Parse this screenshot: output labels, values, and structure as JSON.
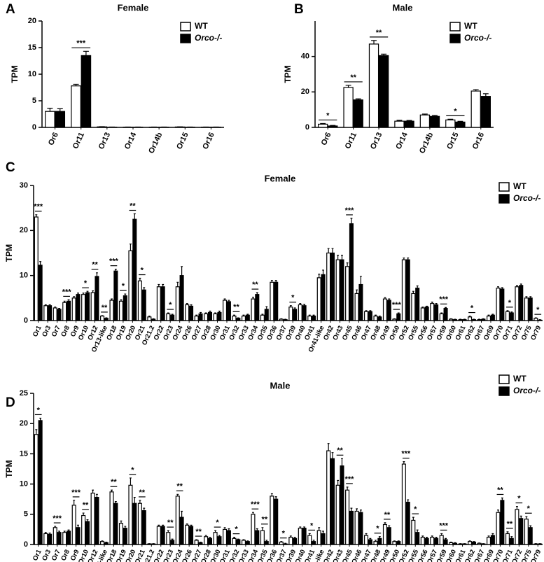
{
  "chart_data": [
    {
      "type": "bar",
      "panel": "A",
      "title": "Female",
      "ylabel": "TPM",
      "categories": [
        "Or6",
        "Or11",
        "Or13",
        "Or14",
        "Or14b",
        "Or15",
        "Or16"
      ],
      "series": [
        {
          "name": "WT",
          "color": "#ffffff",
          "values": [
            3.0,
            7.8,
            0.1,
            0.05,
            0.05,
            0.08,
            0.05
          ],
          "errors": [
            0.6,
            0.3,
            0.03,
            0.02,
            0.02,
            0.02,
            0.02
          ]
        },
        {
          "name": "Orco-/-",
          "color": "#000000",
          "values": [
            3.0,
            13.5,
            0.05,
            0.05,
            0.05,
            0.05,
            0.05
          ],
          "errors": [
            0.5,
            0.8,
            0.02,
            0.02,
            0.02,
            0.02,
            0.02
          ]
        }
      ],
      "ylim": [
        0,
        20
      ],
      "yticks": [
        0,
        5,
        10,
        15,
        20
      ],
      "legend": "upper right",
      "annotations": [
        {
          "category": "Or11",
          "label": "***"
        }
      ]
    },
    {
      "type": "bar",
      "panel": "B",
      "title": "Male",
      "ylabel": "TPM",
      "categories": [
        "Or6",
        "Or11",
        "Or13",
        "Or14",
        "Or14b",
        "Or15",
        "Or16"
      ],
      "series": [
        {
          "name": "WT",
          "color": "#ffffff",
          "values": [
            1.8,
            22.5,
            47,
            3.5,
            7,
            4.2,
            20.5
          ],
          "errors": [
            0.4,
            1.2,
            2,
            0.5,
            0.5,
            0.4,
            0.8
          ]
        },
        {
          "name": "Orco-/-",
          "color": "#000000",
          "values": [
            0.8,
            15.5,
            40.5,
            3.5,
            6.2,
            3.0,
            17.5
          ],
          "errors": [
            0.3,
            0.6,
            0.8,
            0.4,
            0.5,
            0.4,
            1.5
          ]
        }
      ],
      "ylim": [
        0,
        60
      ],
      "yticks": [
        0,
        20,
        40
      ],
      "legend": "upper right",
      "annotations": [
        {
          "category": "Or6",
          "label": "*"
        },
        {
          "category": "Or11",
          "label": "**"
        },
        {
          "category": "Or13",
          "label": "**"
        },
        {
          "category": "Or15",
          "label": "*"
        }
      ]
    },
    {
      "type": "bar",
      "panel": "C",
      "title": "Female",
      "ylabel": "TPM",
      "categories": [
        "Or1",
        "Or3",
        "Or7",
        "Or8",
        "Or9",
        "Or10",
        "Or12",
        "Or13-like",
        "Or18",
        "Or19",
        "Or20",
        "Or21",
        "Or21.2",
        "Or22",
        "Or23",
        "Or24",
        "Or26",
        "Or27",
        "Or28",
        "Or30",
        "Or31",
        "Or32",
        "Or33",
        "Or34",
        "Or35",
        "Or36",
        "Or37",
        "Or39",
        "Or40",
        "Or41",
        "Or41-like",
        "Or42",
        "Or43",
        "Or45",
        "Or46",
        "Or47",
        "Or48",
        "Or49",
        "Or50",
        "Or52",
        "Or55",
        "Or56",
        "Or57",
        "Or59",
        "Or60",
        "Or61",
        "Or62",
        "Or67",
        "Or69",
        "Or70",
        "Or71",
        "Or72",
        "Or75",
        "Or79"
      ],
      "series": [
        {
          "name": "WT",
          "color": "#ffffff",
          "values": [
            23,
            3.3,
            2.8,
            4.0,
            5.0,
            5.8,
            6.2,
            1.0,
            4.5,
            4.3,
            15.5,
            8.8,
            0.8,
            7.5,
            1.5,
            7.5,
            3.5,
            1.0,
            1.5,
            1.5,
            4.5,
            1.0,
            1.0,
            4.8,
            1.2,
            8.5,
            0.3,
            3.0,
            3.5,
            1.0,
            9.5,
            15,
            13.5,
            12.0,
            6.0,
            2.0,
            1.0,
            4.8,
            0.3,
            13.5,
            6.0,
            2.8,
            3.8,
            1.5,
            0.3,
            0.2,
            0.8,
            0.2,
            1.0,
            7.2,
            2.0,
            7.5,
            5.0,
            0.5
          ],
          "errors": [
            0.5,
            0.2,
            0.2,
            0.3,
            0.3,
            0.3,
            0.4,
            0.1,
            0.3,
            0.3,
            1.5,
            0.6,
            0.2,
            0.5,
            0.2,
            1.0,
            0.3,
            0.2,
            0.2,
            0.2,
            0.3,
            0.2,
            0.2,
            0.4,
            0.2,
            0.4,
            0.1,
            0.3,
            0.3,
            0.2,
            0.8,
            1.0,
            1.0,
            0.8,
            0.8,
            0.2,
            0.2,
            0.3,
            0.1,
            0.4,
            0.5,
            0.2,
            0.3,
            0.2,
            0.1,
            0.1,
            0.2,
            0.1,
            0.2,
            0.3,
            0.2,
            0.3,
            0.3,
            0.1
          ]
        },
        {
          "name": "Orco-/-",
          "color": "#000000",
          "values": [
            12.3,
            3.3,
            2.5,
            4.3,
            5.8,
            6.2,
            9.8,
            0.5,
            11.0,
            5.5,
            22.5,
            6.8,
            0.3,
            7.5,
            1.2,
            10.0,
            3.2,
            1.5,
            1.8,
            1.8,
            4.2,
            0.5,
            1.2,
            5.8,
            2.5,
            8.5,
            0.2,
            2.5,
            3.3,
            1.0,
            10.2,
            15,
            13.5,
            21.5,
            8.0,
            2.0,
            0.8,
            4.5,
            1.5,
            13.5,
            7.2,
            3.0,
            3.5,
            2.7,
            0.2,
            0.2,
            0.2,
            0.3,
            1.2,
            7.0,
            1.7,
            7.8,
            5.0,
            0.1
          ],
          "errors": [
            0.8,
            0.2,
            0.2,
            0.3,
            0.3,
            0.3,
            0.8,
            0.1,
            0.4,
            0.4,
            1.2,
            0.5,
            0.1,
            0.5,
            0.2,
            2.0,
            0.3,
            0.3,
            0.3,
            0.3,
            0.3,
            0.1,
            0.2,
            0.4,
            0.6,
            0.4,
            0.1,
            0.3,
            0.3,
            0.2,
            1.0,
            1.0,
            1.0,
            1.2,
            1.8,
            0.2,
            0.2,
            0.3,
            0.2,
            0.4,
            0.5,
            0.2,
            0.3,
            0.2,
            0.1,
            0.1,
            0.1,
            0.1,
            0.2,
            0.3,
            0.2,
            0.3,
            0.3,
            0.1
          ]
        }
      ],
      "ylim": [
        0,
        30
      ],
      "yticks": [
        0,
        10,
        20,
        30
      ],
      "legend": "upper right",
      "annotations": [
        {
          "category": "Or1",
          "label": "***"
        },
        {
          "category": "Or8",
          "label": "***"
        },
        {
          "category": "Or10",
          "label": "*"
        },
        {
          "category": "Or12",
          "label": "**"
        },
        {
          "category": "Or13-like",
          "label": "**"
        },
        {
          "category": "Or18",
          "label": "***"
        },
        {
          "category": "Or19",
          "label": "*"
        },
        {
          "category": "Or20",
          "label": "**"
        },
        {
          "category": "Or21",
          "label": "*"
        },
        {
          "category": "Or23",
          "label": "*"
        },
        {
          "category": "Or32",
          "label": "**"
        },
        {
          "category": "Or34",
          "label": "**"
        },
        {
          "category": "Or39",
          "label": "*"
        },
        {
          "category": "Or45",
          "label": "***"
        },
        {
          "category": "Or50",
          "label": "***"
        },
        {
          "category": "Or59",
          "label": "***"
        },
        {
          "category": "Or62",
          "label": "*"
        },
        {
          "category": "Or71",
          "label": "*"
        },
        {
          "category": "Or79",
          "label": "*"
        }
      ]
    },
    {
      "type": "bar",
      "panel": "D",
      "title": "Male",
      "ylabel": "TPM",
      "categories": [
        "Or1",
        "Or3",
        "Or7",
        "Or8",
        "Or9",
        "Or10",
        "Or12",
        "Or13-like",
        "Or18",
        "Or19",
        "Or20",
        "Or21",
        "Or21.2",
        "Or22",
        "Or23",
        "Or24",
        "Or26",
        "Or27",
        "Or28",
        "Or30",
        "Or31",
        "Or32",
        "Or33",
        "Or34",
        "Or35",
        "Or36",
        "Or37",
        "Or39",
        "Or40",
        "Or41",
        "Or41-like",
        "Or42",
        "Or43",
        "Or45",
        "Or46",
        "Or47",
        "Or48",
        "Or49",
        "Or50",
        "Or52",
        "Or55",
        "Or56",
        "Or57",
        "Or59",
        "Or60",
        "Or61",
        "Or62",
        "Or67",
        "Or69",
        "Or70",
        "Or71",
        "Or72",
        "Or75",
        "Or79"
      ],
      "series": [
        {
          "name": "WT",
          "color": "#ffffff",
          "values": [
            18.2,
            1.8,
            2.8,
            2.0,
            6.5,
            4.8,
            8.5,
            0.5,
            8.7,
            3.5,
            9.8,
            6.8,
            0.1,
            3.0,
            2.0,
            8.0,
            3.2,
            0.7,
            1.3,
            2.0,
            2.5,
            1.0,
            0.7,
            5.0,
            2.3,
            8.0,
            0.4,
            1.2,
            2.7,
            1.5,
            2.3,
            15.5,
            9.8,
            9.0,
            5.5,
            1.5,
            0.5,
            3.3,
            0.5,
            13.3,
            4.0,
            1.2,
            1.2,
            1.5,
            0.3,
            0.1,
            0.5,
            0.2,
            1.2,
            5.3,
            1.8,
            5.8,
            4.2,
            0.1
          ],
          "errors": [
            0.8,
            0.2,
            0.2,
            0.2,
            0.8,
            0.4,
            0.5,
            0.1,
            0.3,
            0.4,
            1.2,
            0.5,
            0.05,
            0.2,
            0.3,
            0.3,
            0.2,
            0.1,
            0.2,
            0.3,
            0.3,
            0.2,
            0.1,
            0.3,
            0.5,
            0.4,
            0.1,
            0.2,
            0.2,
            0.3,
            0.5,
            1.2,
            0.8,
            0.5,
            0.4,
            0.3,
            0.2,
            0.3,
            0.1,
            0.4,
            0.5,
            0.2,
            0.2,
            0.3,
            0.1,
            0.05,
            0.1,
            0.05,
            0.2,
            0.4,
            0.3,
            0.5,
            0.4,
            0.05
          ]
        },
        {
          "name": "Orco-/-",
          "color": "#000000",
          "values": [
            20.5,
            1.7,
            2.0,
            2.2,
            2.8,
            3.8,
            7.8,
            0.3,
            6.8,
            2.7,
            6.8,
            5.6,
            0.1,
            3.0,
            0.7,
            4.5,
            3.0,
            0.3,
            1.0,
            1.3,
            2.3,
            0.8,
            0.5,
            2.3,
            0.5,
            7.5,
            0.1,
            1.0,
            2.7,
            0.5,
            1.8,
            14.2,
            13.0,
            5.5,
            5.3,
            0.8,
            1.0,
            2.8,
            0.5,
            7.0,
            2.0,
            1.0,
            1.0,
            0.8,
            0.2,
            0.1,
            0.4,
            0.1,
            1.5,
            7.3,
            1.0,
            4.3,
            2.8,
            0.1
          ],
          "errors": [
            0.4,
            0.2,
            0.2,
            0.2,
            0.4,
            0.3,
            0.5,
            0.1,
            0.3,
            0.3,
            1.0,
            0.4,
            0.05,
            0.2,
            0.2,
            1.0,
            0.2,
            0.1,
            0.2,
            0.2,
            0.3,
            0.1,
            0.1,
            0.3,
            0.2,
            0.4,
            0.1,
            0.2,
            0.2,
            0.2,
            0.4,
            1.0,
            1.2,
            0.5,
            0.4,
            0.2,
            0.3,
            0.3,
            0.1,
            0.4,
            0.4,
            0.2,
            0.2,
            0.2,
            0.1,
            0.05,
            0.1,
            0.05,
            0.3,
            0.4,
            0.3,
            0.4,
            0.3,
            0.05
          ]
        }
      ],
      "ylim": [
        0,
        25
      ],
      "yticks": [
        0,
        5,
        10,
        15,
        20,
        25
      ],
      "legend": "upper right",
      "annotations": [
        {
          "category": "Or1",
          "label": "*"
        },
        {
          "category": "Or7",
          "label": "***"
        },
        {
          "category": "Or9",
          "label": "***"
        },
        {
          "category": "Or10",
          "label": "**"
        },
        {
          "category": "Or18",
          "label": "**"
        },
        {
          "category": "Or20",
          "label": "*"
        },
        {
          "category": "Or21",
          "label": "**"
        },
        {
          "category": "Or23",
          "label": "**"
        },
        {
          "category": "Or24",
          "label": "**"
        },
        {
          "category": "Or27",
          "label": "**"
        },
        {
          "category": "Or30",
          "label": "*"
        },
        {
          "category": "Or32",
          "label": "*"
        },
        {
          "category": "Or34",
          "label": "***"
        },
        {
          "category": "Or35",
          "label": "**"
        },
        {
          "category": "Or37",
          "label": "*"
        },
        {
          "category": "Or41",
          "label": "*"
        },
        {
          "category": "Or43",
          "label": "**"
        },
        {
          "category": "Or45",
          "label": "***"
        },
        {
          "category": "Or48",
          "label": "*"
        },
        {
          "category": "Or49",
          "label": "**"
        },
        {
          "category": "Or52",
          "label": "***"
        },
        {
          "category": "Or55",
          "label": "*"
        },
        {
          "category": "Or59",
          "label": "***"
        },
        {
          "category": "Or70",
          "label": "**"
        },
        {
          "category": "Or71",
          "label": "**"
        },
        {
          "category": "Or72",
          "label": "*"
        },
        {
          "category": "Or75",
          "label": "*"
        }
      ]
    }
  ]
}
